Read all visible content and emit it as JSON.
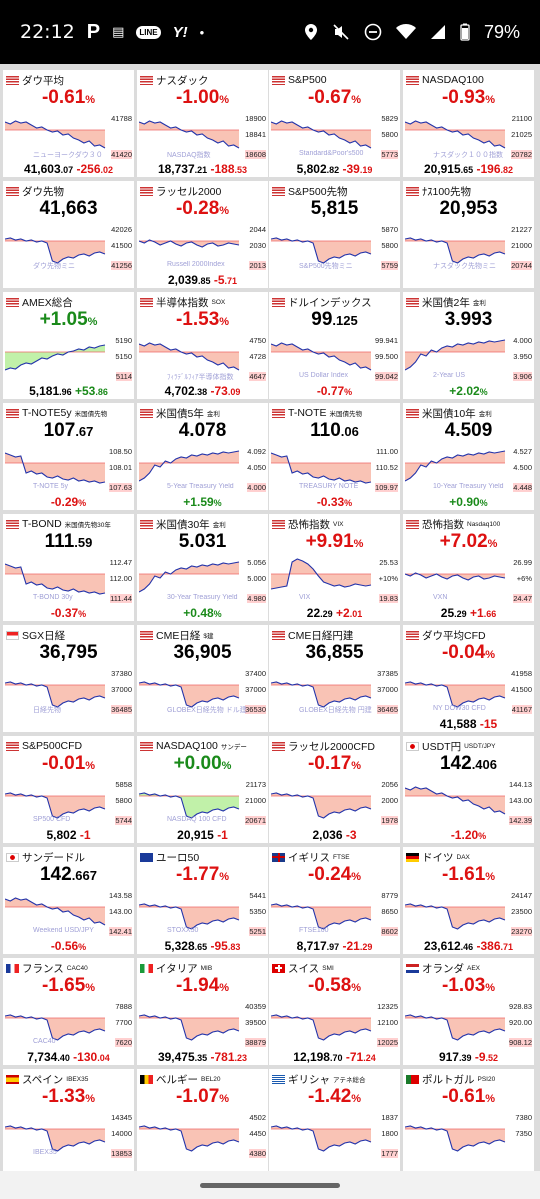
{
  "status_bar": {
    "time": "22:12",
    "battery": "79%",
    "line_label": "LINE",
    "yahoo_label": "Y!",
    "dot": "•"
  },
  "tiles": [
    {
      "name": "ダウ平均",
      "sub": "",
      "flag": "us",
      "big": "-0.61",
      "big_small": "",
      "pct": "%",
      "big_kind": "neg",
      "top": "41788",
      "mid": "",
      "bot": "41420",
      "wm": "ニューヨークダウ３０",
      "foot_main": "41,603",
      "foot_dec": ".07",
      "chg": "-256",
      "chg_dec": ".02",
      "chg_kind": "d",
      "shape": "down"
    },
    {
      "name": "ナスダック",
      "sub": "",
      "flag": "us",
      "big": "-1.00",
      "big_small": "",
      "pct": "%",
      "big_kind": "neg",
      "top": "18900",
      "mid": "18841",
      "bot": "18608",
      "wm": "NASDAQ指数",
      "foot_main": "18,737",
      "foot_dec": ".21",
      "chg": "-188",
      "chg_dec": ".53",
      "chg_kind": "d",
      "shape": "down"
    },
    {
      "name": "S&P500",
      "sub": "",
      "flag": "us",
      "big": "-0.67",
      "big_small": "",
      "pct": "%",
      "big_kind": "neg",
      "top": "5829",
      "mid": "5800",
      "bot": "5773",
      "wm": "Standard&Poor's500",
      "foot_main": "5,802",
      "foot_dec": ".82",
      "chg": "-39",
      "chg_dec": ".19",
      "chg_kind": "d",
      "shape": "down"
    },
    {
      "name": "NASDAQ100",
      "sub": "",
      "flag": "us",
      "big": "-0.93",
      "big_small": "",
      "pct": "%",
      "big_kind": "neg",
      "top": "21100",
      "mid": "21025",
      "bot": "20782",
      "wm": "ナスダック１００指数",
      "foot_main": "20,915",
      "foot_dec": ".65",
      "chg": "-196",
      "chg_dec": ".82",
      "chg_kind": "d",
      "shape": "down"
    },
    {
      "name": "ダウ先物",
      "sub": "",
      "flag": "us",
      "big": "41,663",
      "big_small": "",
      "pct": "",
      "big_kind": "neu",
      "top": "42026",
      "mid": "41500",
      "bot": "41256",
      "wm": "ダウ先物ミニ",
      "foot_main": "",
      "foot_dec": "",
      "chg": "",
      "chg_dec": "",
      "chg_kind": "d",
      "shape": "drop"
    },
    {
      "name": "ラッセル2000",
      "sub": "",
      "flag": "us",
      "big": "-0.28",
      "big_small": "",
      "pct": "%",
      "big_kind": "neg",
      "top": "2044",
      "mid": "2030",
      "bot": "2013",
      "wm": "Russell 2000Index",
      "foot_main": "2,039",
      "foot_dec": ".85",
      "chg": "-5",
      "chg_dec": ".71",
      "chg_kind": "d",
      "shape": "flat"
    },
    {
      "name": "S&P500先物",
      "sub": "",
      "flag": "us",
      "big": "5,815",
      "big_small": "",
      "pct": "",
      "big_kind": "neu",
      "top": "5870",
      "mid": "5800",
      "bot": "5759",
      "wm": "S&P500先物ミニ",
      "foot_main": "",
      "foot_dec": "",
      "chg": "",
      "chg_dec": "",
      "chg_kind": "d",
      "shape": "drop"
    },
    {
      "name": "ﾅｽ100先物",
      "sub": "",
      "flag": "us",
      "big": "20,953",
      "big_small": "",
      "pct": "",
      "big_kind": "neu",
      "top": "21227",
      "mid": "21000",
      "bot": "20744",
      "wm": "ナスダック先物ミニ",
      "foot_main": "",
      "foot_dec": "",
      "chg": "",
      "chg_dec": "",
      "chg_kind": "d",
      "shape": "drop"
    },
    {
      "name": "AMEX総合",
      "sub": "",
      "flag": "us",
      "big": "+1.05",
      "big_small": "",
      "pct": "%",
      "big_kind": "pos",
      "top": "5190",
      "mid": "5150",
      "bot": "5114",
      "wm": "",
      "foot_main": "5,181",
      "foot_dec": ".96",
      "chg": "+53",
      "chg_dec": ".86",
      "chg_kind": "u",
      "shape": "up"
    },
    {
      "name": "半導体指数",
      "sub": "SOX",
      "flag": "us",
      "big": "-1.53",
      "big_small": "",
      "pct": "%",
      "big_kind": "neg",
      "top": "4750",
      "mid": "4728",
      "bot": "4647",
      "wm": "ﾌｨﾗﾃﾞﾙﾌｨｱ半導体指数",
      "foot_main": "4,702",
      "foot_dec": ".38",
      "chg": "-73",
      "chg_dec": ".09",
      "chg_kind": "d",
      "shape": "down"
    },
    {
      "name": "ドルインデックス",
      "sub": "",
      "flag": "us",
      "big": "99",
      "big_small": ".125",
      "pct": "",
      "big_kind": "neu",
      "top": "99.941",
      "mid": "99.500",
      "bot": "99.042",
      "wm": "US Dollar Index",
      "foot_main": "",
      "foot_dec": "",
      "chg": "-0.77",
      "chg_dec": "%",
      "chg_kind": "d",
      "shape": "down"
    },
    {
      "name": "米国債2年",
      "sub": "金利",
      "flag": "us",
      "big": "3.993",
      "big_small": "",
      "pct": "",
      "big_kind": "neu",
      "top": "4.000",
      "mid": "3.950",
      "bot": "3.906",
      "wm": "2-Year US",
      "foot_main": "",
      "foot_dec": "",
      "chg": "+2.02",
      "chg_dec": "%",
      "chg_kind": "u",
      "shape": "rise"
    },
    {
      "name": "T-NOTE5y",
      "sub": "米国債先物",
      "flag": "us",
      "big": "107",
      "big_small": ".67",
      "pct": "",
      "big_kind": "neu",
      "top": "108.50",
      "mid": "108.01",
      "bot": "107.63",
      "wm": "T-NOTE 5y",
      "foot_main": "",
      "foot_dec": "",
      "chg": "-0.29",
      "chg_dec": "%",
      "chg_kind": "d",
      "shape": "fall"
    },
    {
      "name": "米国債5年",
      "sub": "金利",
      "flag": "us",
      "big": "4.078",
      "big_small": "",
      "pct": "",
      "big_kind": "neu",
      "top": "4.092",
      "mid": "4.050",
      "bot": "4.000",
      "wm": "5-Year Treasury Yield",
      "foot_main": "",
      "foot_dec": "",
      "chg": "+1.59",
      "chg_dec": "%",
      "chg_kind": "u",
      "shape": "rise"
    },
    {
      "name": "T-NOTE",
      "sub": "米国債先物",
      "flag": "us",
      "big": "110",
      "big_small": ".06",
      "pct": "",
      "big_kind": "neu",
      "top": "111.00",
      "mid": "110.52",
      "bot": "109.97",
      "wm": "TREASURY NOTE",
      "foot_main": "",
      "foot_dec": "",
      "chg": "-0.33",
      "chg_dec": "%",
      "chg_kind": "d",
      "shape": "fall"
    },
    {
      "name": "米国債10年",
      "sub": "金利",
      "flag": "us",
      "big": "4.509",
      "big_small": "",
      "pct": "",
      "big_kind": "neu",
      "top": "4.527",
      "mid": "4.500",
      "bot": "4.448",
      "wm": "10-Year Treasury Yield",
      "foot_main": "",
      "foot_dec": "",
      "chg": "+0.90",
      "chg_dec": "%",
      "chg_kind": "u",
      "shape": "rise"
    },
    {
      "name": "T-BOND",
      "sub": "米国債先物30年",
      "flag": "us",
      "big": "111",
      "big_small": ".59",
      "pct": "",
      "big_kind": "neu",
      "top": "112.47",
      "mid": "112.00",
      "bot": "111.44",
      "wm": "T-BOND 30y",
      "foot_main": "",
      "foot_dec": "",
      "chg": "-0.37",
      "chg_dec": "%",
      "chg_kind": "d",
      "shape": "fall"
    },
    {
      "name": "米国債30年",
      "sub": "金利",
      "flag": "us",
      "big": "5.031",
      "big_small": "",
      "pct": "",
      "big_kind": "neu",
      "top": "5.056",
      "mid": "5.000",
      "bot": "4.980",
      "wm": "30-Year Treasury Yield",
      "foot_main": "",
      "foot_dec": "",
      "chg": "+0.48",
      "chg_dec": "%",
      "chg_kind": "u",
      "shape": "rise"
    },
    {
      "name": "恐怖指数",
      "sub": "VIX",
      "flag": "us",
      "big": "+9.91",
      "big_small": "",
      "pct": "%",
      "big_kind": "neg",
      "top": "25.53",
      "mid": "+10%",
      "bot": "19.83",
      "wm": "VIX",
      "foot_main": "22",
      "foot_dec": ".29",
      "chg": "+2",
      "chg_dec": ".01",
      "chg_kind": "d",
      "shape": "spike"
    },
    {
      "name": "恐怖指数",
      "sub": "Nasdaq100",
      "flag": "us",
      "big": "+7.02",
      "big_small": "",
      "pct": "%",
      "big_kind": "neg",
      "top": "26.99",
      "mid": "+6%",
      "bot": "24.47",
      "wm": "VXN",
      "foot_main": "25",
      "foot_dec": ".29",
      "chg": "+1",
      "chg_dec": ".66",
      "chg_kind": "d",
      "shape": "flat"
    },
    {
      "name": "SGX日経",
      "sub": "",
      "flag": "sg",
      "big": "36,795",
      "big_small": "",
      "pct": "",
      "big_kind": "neu",
      "top": "37380",
      "mid": "37000",
      "bot": "36485",
      "wm": "日経先物",
      "foot_main": "",
      "foot_dec": "",
      "chg": "",
      "chg_dec": "",
      "chg_kind": "d",
      "shape": "drop"
    },
    {
      "name": "CME日経",
      "sub": "$建",
      "flag": "us",
      "big": "36,905",
      "big_small": "",
      "pct": "",
      "big_kind": "neu",
      "top": "37400",
      "mid": "37000",
      "bot": "36530",
      "wm": "GLOBEX日経先物 ドル建",
      "foot_main": "",
      "foot_dec": "",
      "chg": "",
      "chg_dec": "",
      "chg_kind": "d",
      "shape": "drop"
    },
    {
      "name": "CME日経円建",
      "sub": "",
      "flag": "us",
      "big": "36,855",
      "big_small": "",
      "pct": "",
      "big_kind": "neu",
      "top": "37385",
      "mid": "37000",
      "bot": "36465",
      "wm": "GLOBEX日経先物 円建",
      "foot_main": "",
      "foot_dec": "",
      "chg": "",
      "chg_dec": "",
      "chg_kind": "d",
      "shape": "drop"
    },
    {
      "name": "ダウ平均CFD",
      "sub": "",
      "flag": "us",
      "big": "-0.04",
      "big_small": "",
      "pct": "%",
      "big_kind": "neg",
      "top": "41958",
      "mid": "41500",
      "bot": "41167",
      "wm": "NY DOW30 CFD",
      "foot_main": "41,588",
      "foot_dec": "",
      "chg": "-15",
      "chg_dec": "",
      "chg_kind": "d",
      "shape": "drop"
    },
    {
      "name": "S&P500CFD",
      "sub": "",
      "flag": "us",
      "big": "-0.01",
      "big_small": "",
      "pct": "%",
      "big_kind": "neg",
      "top": "5858",
      "mid": "5800",
      "bot": "5744",
      "wm": "SP500 CFD",
      "foot_main": "5,802",
      "foot_dec": "",
      "chg": "-1",
      "chg_dec": "",
      "chg_kind": "d",
      "shape": "drop"
    },
    {
      "name": "NASDAQ100",
      "sub": "サンデー",
      "flag": "us",
      "big": "+0.00",
      "big_small": "",
      "pct": "%",
      "big_kind": "pos",
      "top": "21173",
      "mid": "21000",
      "bot": "20671",
      "wm": "NASDAQ 100 CFD",
      "foot_main": "20,915",
      "foot_dec": "",
      "chg": "-1",
      "chg_dec": "",
      "chg_kind": "d",
      "shape": "drop"
    },
    {
      "name": "ラッセル2000CFD",
      "sub": "",
      "flag": "us",
      "big": "-0.17",
      "big_small": "",
      "pct": "%",
      "big_kind": "neg",
      "top": "2056",
      "mid": "2000",
      "bot": "1978",
      "wm": "",
      "foot_main": "2,036",
      "foot_dec": "",
      "chg": "-3",
      "chg_dec": "",
      "chg_kind": "d",
      "shape": "drop"
    },
    {
      "name": "USDT円",
      "sub": "USDT/JPY",
      "flag": "jp",
      "big": "142",
      "big_small": ".406",
      "pct": "",
      "big_kind": "neu",
      "top": "144.13",
      "mid": "143.00",
      "bot": "142.39",
      "wm": "",
      "foot_main": "",
      "foot_dec": "",
      "chg": "-1.20",
      "chg_dec": "%",
      "chg_kind": "d",
      "shape": "down"
    },
    {
      "name": "サンデードル",
      "sub": "",
      "flag": "jp",
      "big": "142",
      "big_small": ".667",
      "pct": "",
      "big_kind": "neu",
      "top": "143.58",
      "mid": "143.00",
      "bot": "142.41",
      "wm": "Weekend USD/JPY",
      "foot_main": "",
      "foot_dec": "",
      "chg": "-0.56",
      "chg_dec": "%",
      "chg_kind": "d",
      "shape": "down"
    },
    {
      "name": "ユーロ50",
      "sub": "",
      "flag": "eu",
      "big": "-1.77",
      "big_small": "",
      "pct": "%",
      "big_kind": "neg",
      "top": "5441",
      "mid": "5350",
      "bot": "5251",
      "wm": "STOXX50",
      "foot_main": "5,328",
      "foot_dec": ".65",
      "chg": "-95",
      "chg_dec": ".83",
      "chg_kind": "d",
      "shape": "drop"
    },
    {
      "name": "イギリス",
      "sub": "FTSE",
      "flag": "uk",
      "big": "-0.24",
      "big_small": "",
      "pct": "%",
      "big_kind": "neg",
      "top": "8779",
      "mid": "8650",
      "bot": "8602",
      "wm": "FTSE100",
      "foot_main": "8,717",
      "foot_dec": ".97",
      "chg": "-21",
      "chg_dec": ".29",
      "chg_kind": "d",
      "shape": "drop"
    },
    {
      "name": "ドイツ",
      "sub": "DAX",
      "flag": "de",
      "big": "-1.61",
      "big_small": "",
      "pct": "%",
      "big_kind": "neg",
      "top": "24147",
      "mid": "23500",
      "bot": "23270",
      "wm": "",
      "foot_main": "23,612",
      "foot_dec": ".46",
      "chg": "-386",
      "chg_dec": ".71",
      "chg_kind": "d",
      "shape": "drop"
    },
    {
      "name": "フランス",
      "sub": "CAC40",
      "flag": "fr",
      "big": "-1.65",
      "big_small": "",
      "pct": "%",
      "big_kind": "neg",
      "top": "7888",
      "mid": "7700",
      "bot": "7620",
      "wm": "CAC40",
      "foot_main": "7,734",
      "foot_dec": ".40",
      "chg": "-130",
      "chg_dec": ".04",
      "chg_kind": "d",
      "shape": "drop"
    },
    {
      "name": "イタリア",
      "sub": "MIB",
      "flag": "it",
      "big": "-1.94",
      "big_small": "",
      "pct": "%",
      "big_kind": "neg",
      "top": "40359",
      "mid": "39500",
      "bot": "38879",
      "wm": "",
      "foot_main": "39,475",
      "foot_dec": ".35",
      "chg": "-781",
      "chg_dec": ".23",
      "chg_kind": "d",
      "shape": "drop"
    },
    {
      "name": "スイス",
      "sub": "SMI",
      "flag": "ch",
      "big": "-0.58",
      "big_small": "",
      "pct": "%",
      "big_kind": "neg",
      "top": "12325",
      "mid": "12100",
      "bot": "12025",
      "wm": "",
      "foot_main": "12,198",
      "foot_dec": ".70",
      "chg": "-71",
      "chg_dec": ".24",
      "chg_kind": "d",
      "shape": "drop"
    },
    {
      "name": "オランダ",
      "sub": "AEX",
      "flag": "nl",
      "big": "-1.03",
      "big_small": "",
      "pct": "%",
      "big_kind": "neg",
      "top": "928.83",
      "mid": "920.00",
      "bot": "908.12",
      "wm": "",
      "foot_main": "917",
      "foot_dec": ".39",
      "chg": "-9",
      "chg_dec": ".52",
      "chg_kind": "d",
      "shape": "drop"
    },
    {
      "name": "スペイン",
      "sub": "IBEX35",
      "flag": "es",
      "big": "-1.33",
      "big_small": "",
      "pct": "%",
      "big_kind": "neg",
      "top": "14345",
      "mid": "14000",
      "bot": "13853",
      "wm": "IBEX35",
      "foot_main": "",
      "foot_dec": "",
      "chg": "",
      "chg_dec": "",
      "chg_kind": "d",
      "shape": "drop"
    },
    {
      "name": "ベルギー",
      "sub": "BEL20",
      "flag": "be",
      "big": "-1.07",
      "big_small": "",
      "pct": "%",
      "big_kind": "neg",
      "top": "4502",
      "mid": "4450",
      "bot": "4380",
      "wm": "",
      "foot_main": "",
      "foot_dec": "",
      "chg": "",
      "chg_dec": "",
      "chg_kind": "d",
      "shape": "drop"
    },
    {
      "name": "ギリシャ",
      "sub": "アテネ総合",
      "flag": "gr",
      "big": "-1.42",
      "big_small": "",
      "pct": "%",
      "big_kind": "neg",
      "top": "1837",
      "mid": "1800",
      "bot": "1777",
      "wm": "",
      "foot_main": "",
      "foot_dec": "",
      "chg": "",
      "chg_dec": "",
      "chg_kind": "d",
      "shape": "drop"
    },
    {
      "name": "ポルトガル",
      "sub": "PSI20",
      "flag": "pt",
      "big": "-0.61",
      "big_small": "",
      "pct": "%",
      "big_kind": "neg",
      "top": "7380",
      "mid": "7350",
      "bot": "",
      "wm": "",
      "foot_main": "",
      "foot_dec": "",
      "chg": "",
      "chg_dec": "",
      "chg_kind": "d",
      "shape": "drop"
    }
  ]
}
